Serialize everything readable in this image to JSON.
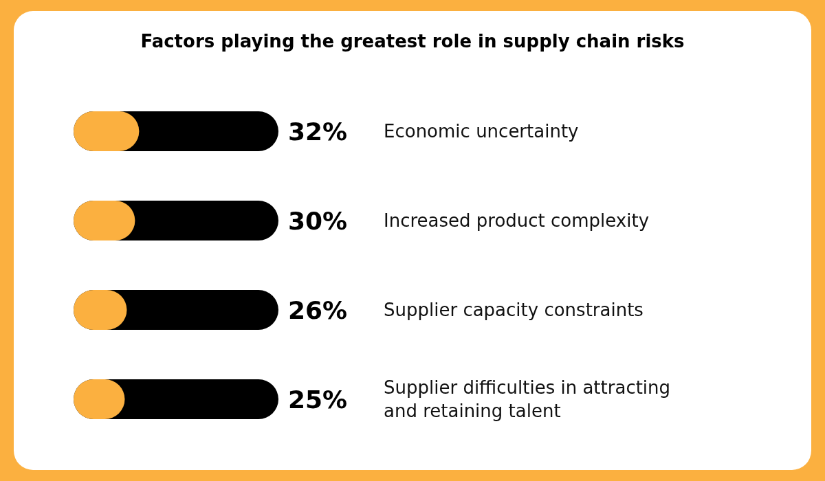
{
  "chart_data": {
    "type": "bar",
    "orientation": "horizontal",
    "title": "Factors playing the greatest role in supply chain risks",
    "categories": [
      "Economic uncertainty",
      "Increased product complexity",
      "Supplier capacity constraints",
      "Supplier difficulties in attracting and retaining talent"
    ],
    "values": [
      32,
      30,
      26,
      25
    ],
    "color": "#fbb040",
    "value_labels": [
      "32%",
      "30%",
      "26%",
      "25%"
    ],
    "xlim": [
      0,
      100
    ]
  }
}
